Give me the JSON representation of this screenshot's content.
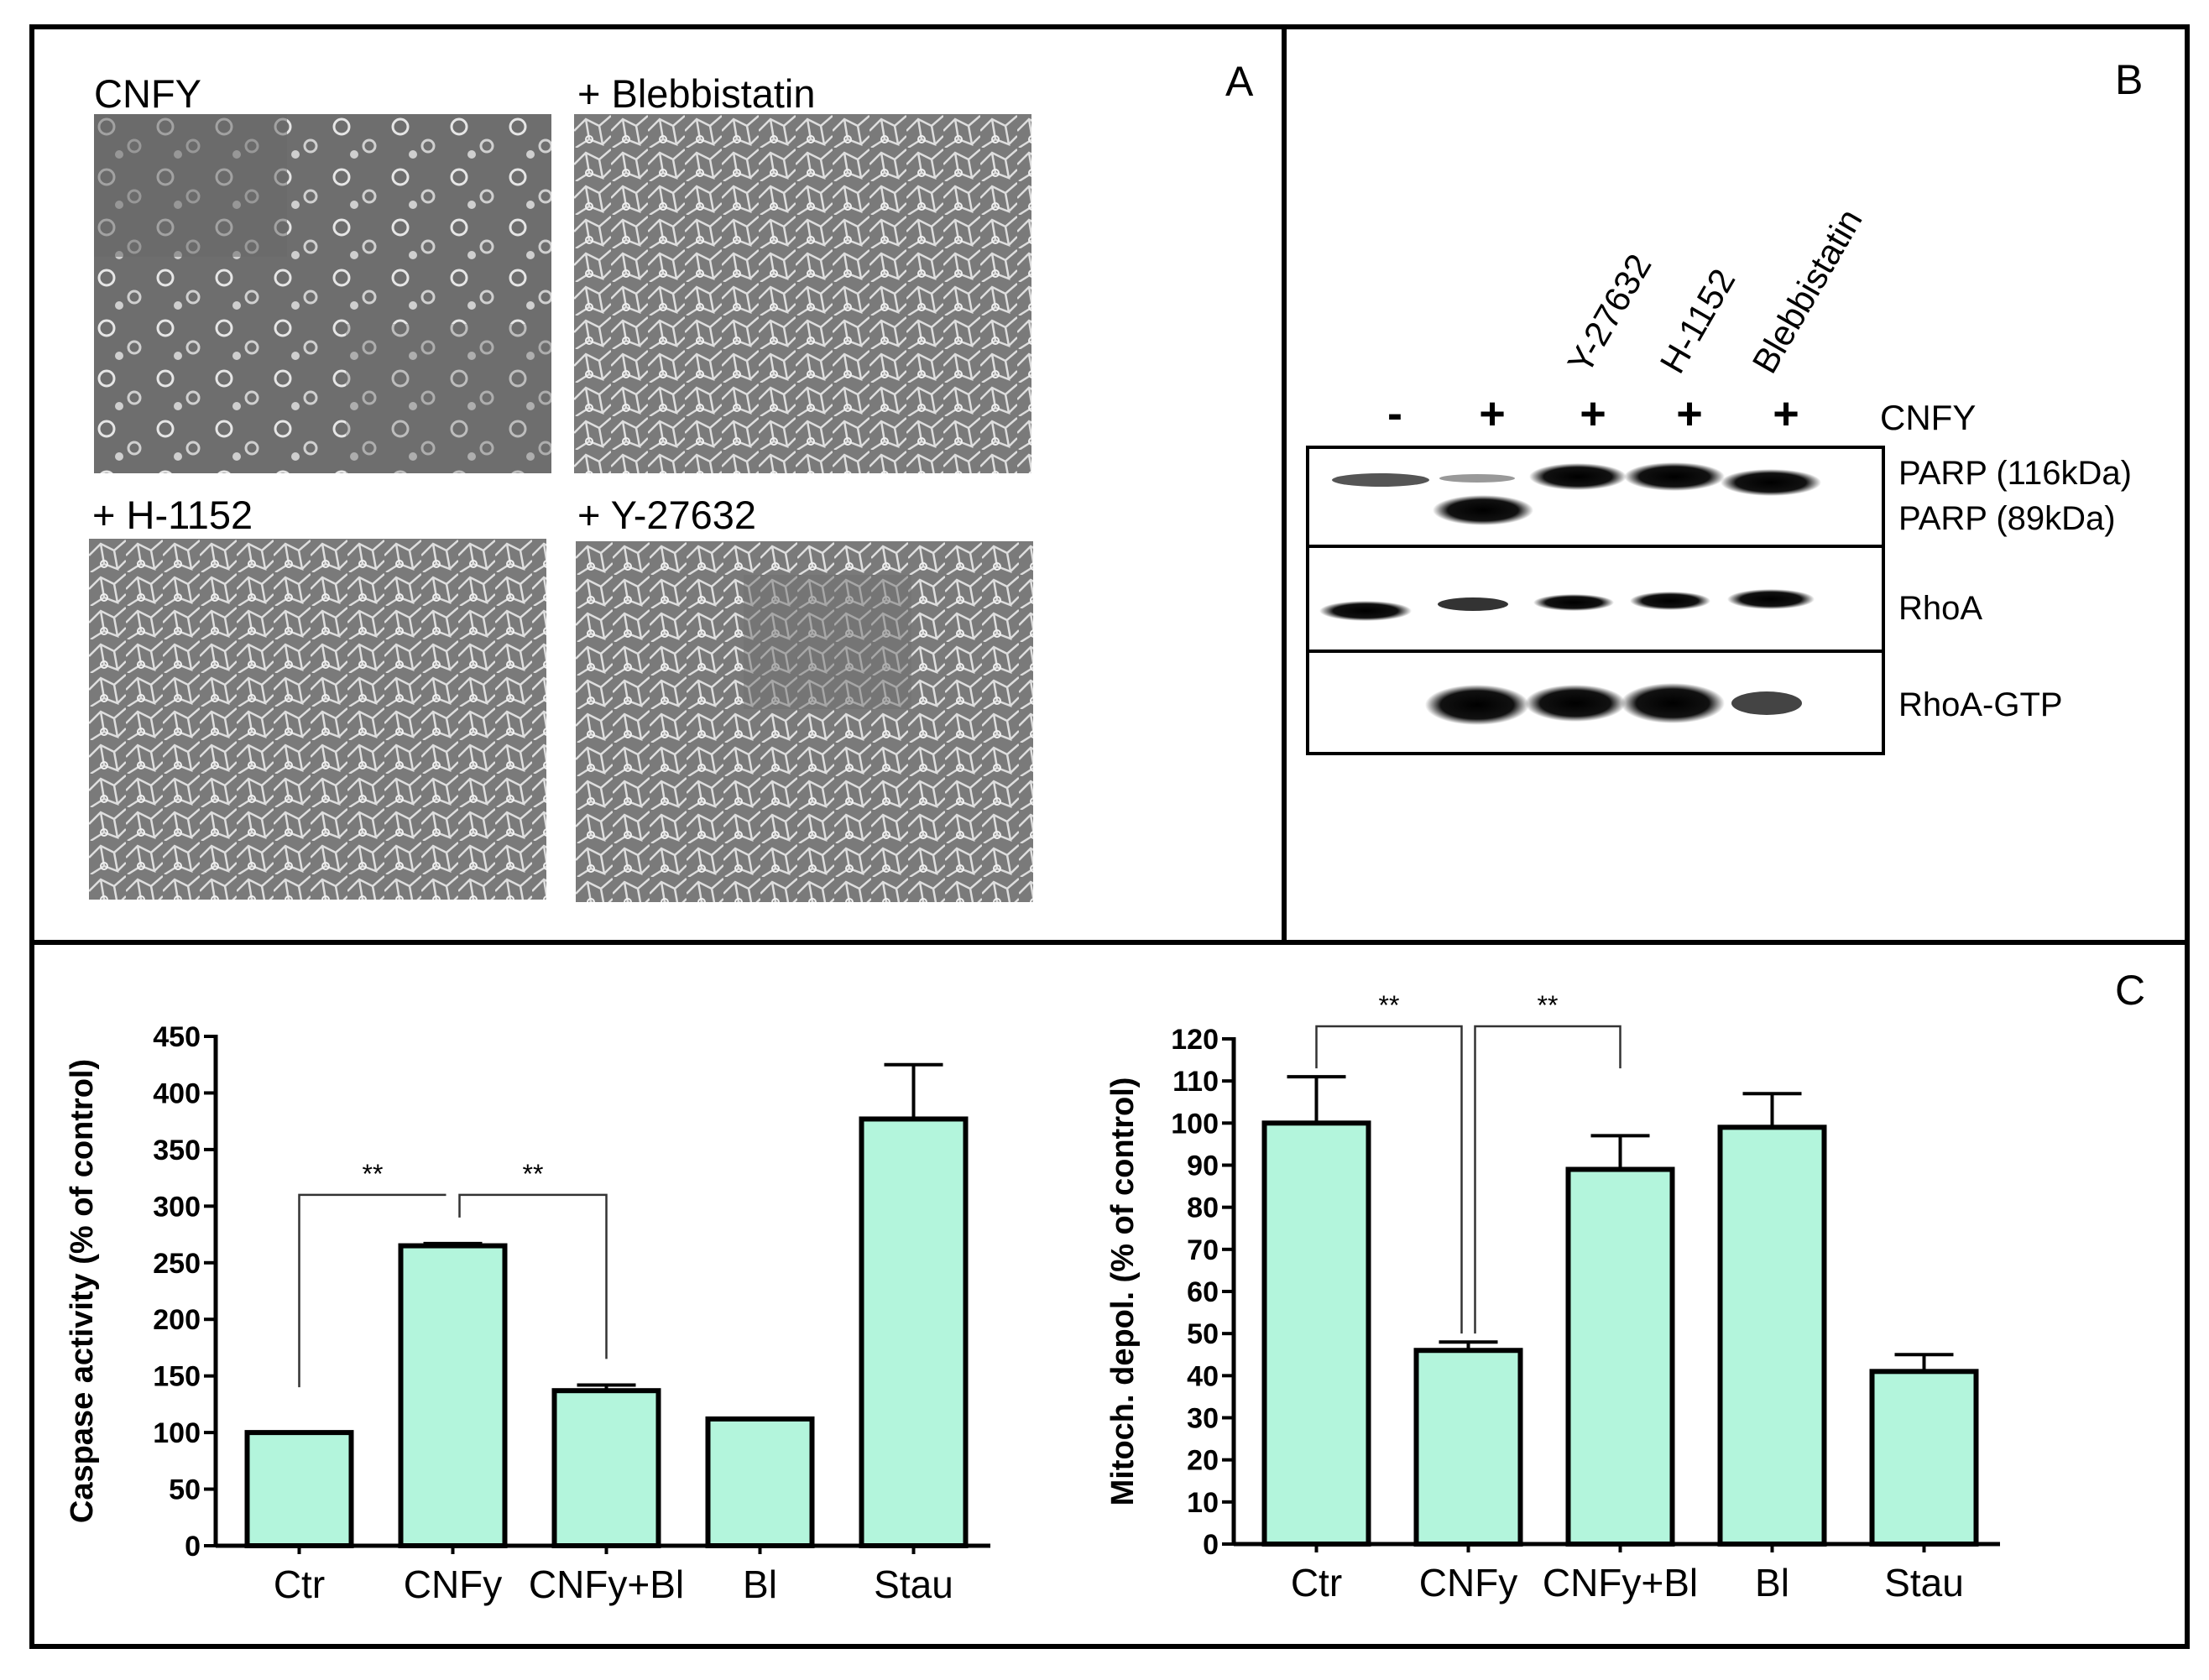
{
  "panels": {
    "A": {
      "letter": "A",
      "images": [
        {
          "label": "CNFY"
        },
        {
          "label": "+ Blebbistatin"
        },
        {
          "label": "+ H-1152"
        },
        {
          "label": "+ Y-27632"
        }
      ]
    },
    "B": {
      "letter": "B",
      "lanes": [
        {
          "label": "",
          "sign": "-"
        },
        {
          "label": "",
          "sign": "+"
        },
        {
          "label": "Y-27632",
          "sign": "+"
        },
        {
          "label": "H-1152",
          "sign": "+"
        },
        {
          "label": "Blebbistatin",
          "sign": "+"
        }
      ],
      "treatment_label": "CNFY",
      "rows": [
        {
          "labels": [
            "PARP (116kDa)",
            "PARP (89kDa)"
          ]
        },
        {
          "labels": [
            "RhoA"
          ]
        },
        {
          "labels": [
            "RhoA-GTP"
          ]
        }
      ]
    },
    "C": {
      "letter": "C"
    }
  },
  "chart_data": [
    {
      "type": "bar",
      "categories": [
        "Ctr",
        "CNFy",
        "CNFy+Bl",
        "Bl",
        "Stau"
      ],
      "values": [
        100,
        265,
        137,
        112,
        377
      ],
      "errors": [
        0,
        2,
        5,
        0,
        48
      ],
      "ylabel": "Caspase activity (% of control)",
      "ylim": [
        0,
        450
      ],
      "yticks": [
        "0",
        "50",
        "100",
        "150",
        "200",
        "250",
        "300",
        "350",
        "400",
        "450"
      ],
      "bar_color": "#b3f5dc",
      "significance": [
        {
          "from": 0,
          "to": 1,
          "label": "**",
          "y": 310,
          "y_left": 140,
          "y_right": 310
        },
        {
          "from": 1,
          "to": 2,
          "label": "**",
          "y": 310,
          "y_left": 290,
          "y_right": 165
        }
      ]
    },
    {
      "type": "bar",
      "categories": [
        "Ctr",
        "CNFy",
        "CNFy+Bl",
        "Bl",
        "Stau"
      ],
      "values": [
        100,
        46,
        89,
        99,
        41
      ],
      "errors": [
        11,
        2,
        8,
        8,
        4
      ],
      "ylabel": "Mitoch. depol. (% of control)",
      "ylim": [
        0,
        120
      ],
      "yticks": [
        "0",
        "10",
        "20",
        "30",
        "40",
        "50",
        "60",
        "70",
        "80",
        "90",
        "100",
        "110",
        "120"
      ],
      "bar_color": "#b3f5dc",
      "significance": [
        {
          "from": 0,
          "to": 1,
          "label": "**",
          "y": 123,
          "y_left": 113,
          "y_right": 50
        },
        {
          "from": 1,
          "to": 2,
          "label": "**",
          "y": 123,
          "y_left": 50,
          "y_right": 113
        }
      ]
    }
  ]
}
